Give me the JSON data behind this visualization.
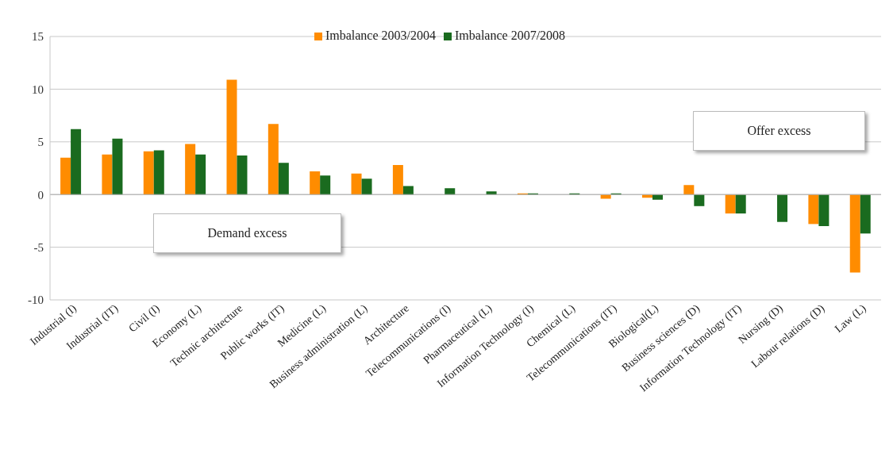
{
  "chart_data": {
    "type": "bar",
    "categories": [
      "Industrial (I)",
      "Industrial (IT)",
      "Civil (I)",
      "Economy (L)",
      "Technic architecture",
      "Public works (IT)",
      "Medicine (L)",
      "Business administration (L)",
      "Architecture",
      "Telecommunications (I)",
      "Pharmaceutical (L)",
      "Information Technology (I)",
      "Chemical (L)",
      "Telecommunications (IT)",
      "Biological(L)",
      "Business sciences (D)",
      "Information Technology (IT)",
      "Nursing (D)",
      "Labour relations (D)",
      "Law (L)"
    ],
    "series": [
      {
        "name": "Imbalance 2003/2004",
        "color": "#ff8c00",
        "values": [
          3.5,
          3.8,
          4.1,
          4.8,
          10.9,
          6.7,
          2.2,
          2.0,
          2.8,
          0,
          0,
          0.1,
          0,
          -0.4,
          -0.3,
          0.9,
          -1.8,
          0,
          -2.8,
          -7.4
        ]
      },
      {
        "name": "Imbalance 2007/2008",
        "color": "#1a6b1f",
        "values": [
          6.2,
          5.3,
          4.2,
          3.8,
          3.7,
          3.0,
          1.8,
          1.5,
          0.8,
          0.6,
          0.3,
          0.1,
          0.1,
          0.1,
          -0.5,
          -1.1,
          -1.8,
          -2.6,
          -3.0,
          -3.7
        ]
      }
    ],
    "ylim": [
      -10,
      15
    ],
    "yticks": [
      -10,
      -5,
      0,
      5,
      10,
      15
    ],
    "grid": "y",
    "legend": "top",
    "annotations": [
      "Demand excess",
      "Offer excess"
    ]
  }
}
